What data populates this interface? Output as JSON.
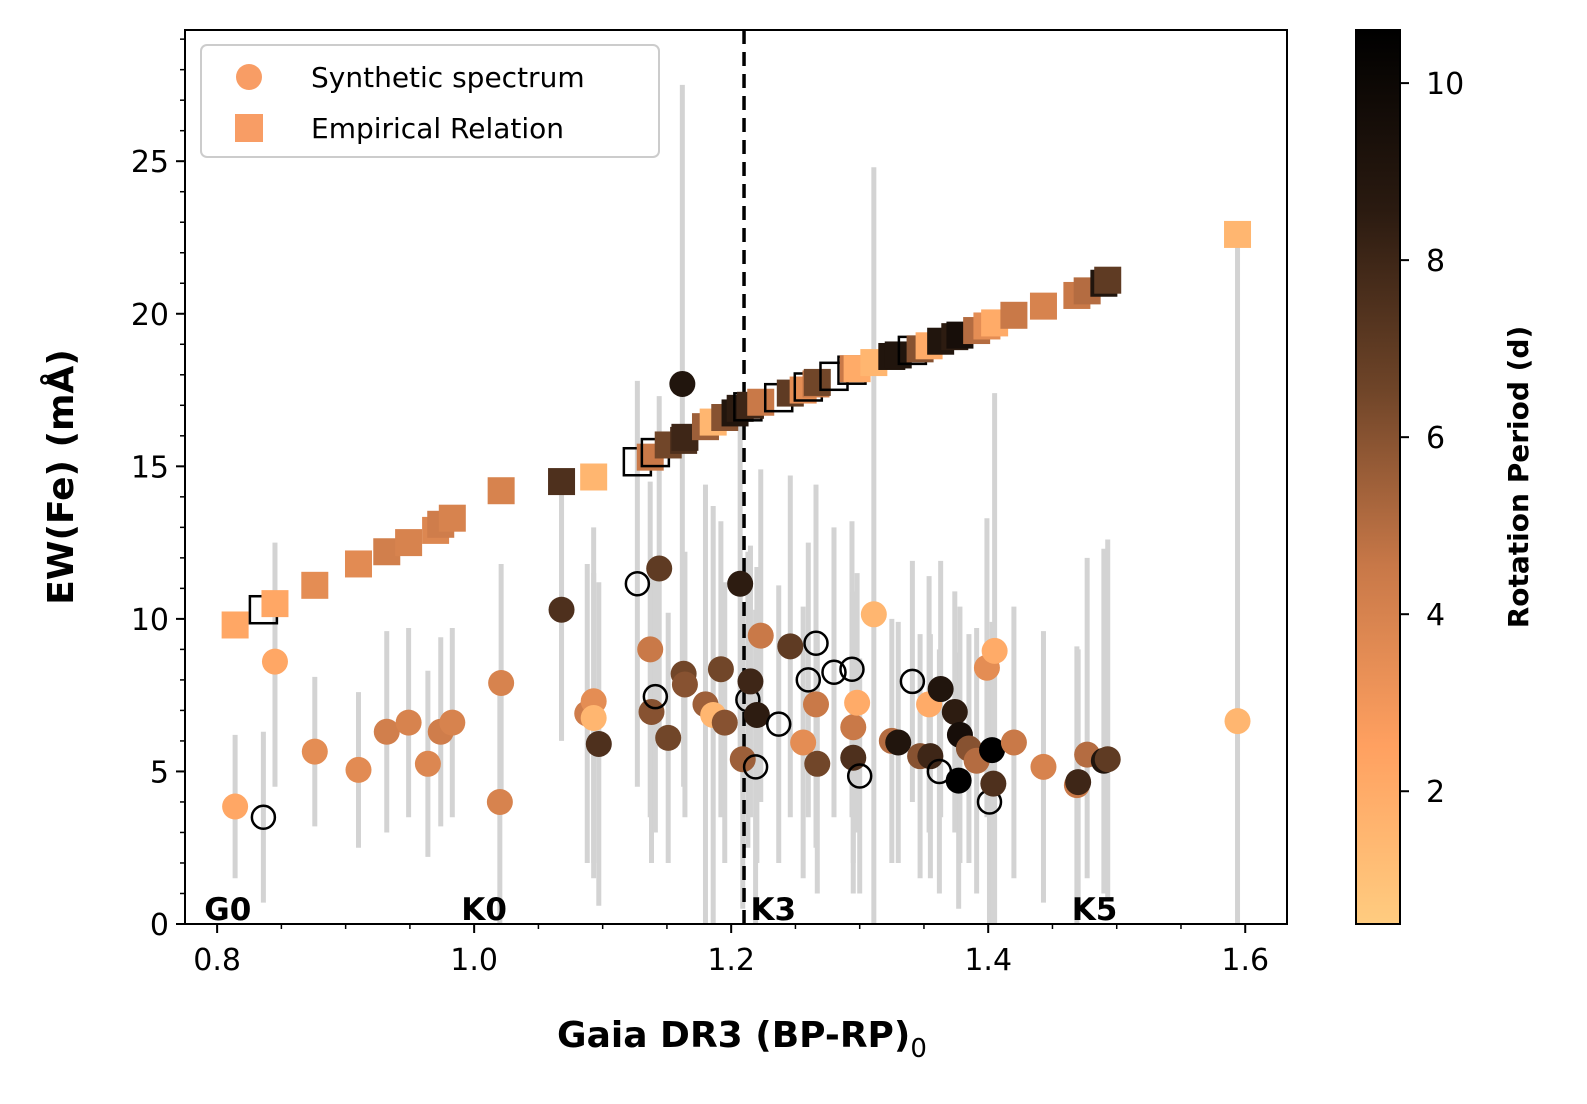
{
  "chart_data": {
    "type": "scatter",
    "xlabel": "Gaia DR3 (BP-RP)",
    "xlabel_sub": "0",
    "ylabel": "EW(Fe) (mÅ)",
    "xlim": [
      0.775,
      1.6325
    ],
    "ylim": [
      0,
      29.3
    ],
    "xticks": [
      "0.8",
      "1.0",
      "1.2",
      "1.4",
      "1.6"
    ],
    "yticks": [
      "0",
      "5",
      "10",
      "15",
      "20",
      "25"
    ],
    "colorbar": {
      "label": "Rotation Period (d)",
      "range": [
        0.5,
        10.6
      ],
      "ticks": [
        "2",
        "4",
        "6",
        "8",
        "10"
      ],
      "colors": [
        "#ffcc80",
        "#ffa060",
        "#c87848",
        "#6e4428",
        "#2a1a10",
        "#000000"
      ]
    },
    "legend": {
      "position": "upper-left",
      "entries": [
        {
          "label": "Synthetic spectrum",
          "marker": "circle",
          "color": "#f89d65"
        },
        {
          "label": "Empirical Relation",
          "marker": "square",
          "color": "#f89d65"
        }
      ]
    },
    "reference_line": {
      "x": 1.21,
      "style": "dashed",
      "color": "#000000"
    },
    "spectral_types": [
      {
        "label": "G0",
        "x": 0.79
      },
      {
        "label": "K0",
        "x": 0.99
      },
      {
        "label": "K3",
        "x": 1.215
      },
      {
        "label": "K5",
        "x": 1.465
      }
    ],
    "series": [
      {
        "name": "Synthetic spectrum",
        "marker": "circle",
        "points": [
          {
            "x": 0.814,
            "y": 3.85,
            "p": 2.2,
            "lo": 1.5,
            "hi": 6.2
          },
          {
            "x": 0.836,
            "y": 3.5,
            "p": null,
            "lo": 0.7,
            "hi": 6.3
          },
          {
            "x": 0.845,
            "y": 8.6,
            "p": 2.2,
            "lo": 4.5,
            "hi": 12.5
          },
          {
            "x": 0.876,
            "y": 5.65,
            "p": 3.5,
            "lo": 3.2,
            "hi": 8.1
          },
          {
            "x": 0.91,
            "y": 5.05,
            "p": 3.6,
            "lo": 2.5,
            "hi": 7.6
          },
          {
            "x": 0.932,
            "y": 6.3,
            "p": 4.2,
            "lo": 3.0,
            "hi": 9.6
          },
          {
            "x": 0.949,
            "y": 6.6,
            "p": 4.0,
            "lo": 3.5,
            "hi": 9.7
          },
          {
            "x": 0.964,
            "y": 5.25,
            "p": 3.8,
            "lo": 2.2,
            "hi": 8.3
          },
          {
            "x": 0.974,
            "y": 6.3,
            "p": 4.3,
            "lo": 3.2,
            "hi": 9.4
          },
          {
            "x": 0.983,
            "y": 6.6,
            "p": 4.0,
            "lo": 3.5,
            "hi": 9.7
          },
          {
            "x": 1.02,
            "y": 4.0,
            "p": 4.0,
            "lo": 0.0,
            "hi": 8.0
          },
          {
            "x": 1.021,
            "y": 7.9,
            "p": 4.0,
            "lo": 4.0,
            "hi": 11.8
          },
          {
            "x": 1.068,
            "y": 10.3,
            "p": 7.5,
            "lo": 6.0,
            "hi": 14.6
          },
          {
            "x": 1.088,
            "y": 6.9,
            "p": 4.3,
            "lo": 2.0,
            "hi": 11.8
          },
          {
            "x": 1.093,
            "y": 7.3,
            "p": 3.5,
            "lo": 1.5,
            "hi": 13.0
          },
          {
            "x": 1.093,
            "y": 6.75,
            "p": 1.5,
            "lo": 2.0,
            "hi": 11.5
          },
          {
            "x": 1.097,
            "y": 5.9,
            "p": 7.5,
            "lo": 0.6,
            "hi": 11.2
          },
          {
            "x": 1.127,
            "y": 11.15,
            "p": null,
            "lo": 4.5,
            "hi": 17.8
          },
          {
            "x": 1.137,
            "y": 9.0,
            "p": 4.5,
            "lo": 3.5,
            "hi": 14.5
          },
          {
            "x": 1.138,
            "y": 6.95,
            "p": 6.0,
            "lo": 2.0,
            "hi": 11.9
          },
          {
            "x": 1.141,
            "y": 7.45,
            "p": null,
            "lo": 3.0,
            "hi": 11.9
          },
          {
            "x": 1.144,
            "y": 11.65,
            "p": 7.0,
            "lo": 6.0,
            "hi": 17.3
          },
          {
            "x": 1.151,
            "y": 6.1,
            "p": 6.5,
            "lo": 2.0,
            "hi": 10.2
          },
          {
            "x": 1.162,
            "y": 17.7,
            "p": 9.0,
            "lo": 7.9,
            "hi": 27.5
          },
          {
            "x": 1.163,
            "y": 8.2,
            "p": 6.5,
            "lo": 4.5,
            "hi": 11.9
          },
          {
            "x": 1.164,
            "y": 7.85,
            "p": 6.0,
            "lo": 3.5,
            "hi": 12.2
          },
          {
            "x": 1.18,
            "y": 7.2,
            "p": 5.5,
            "lo": 0.0,
            "hi": 14.4
          },
          {
            "x": 1.186,
            "y": 6.85,
            "p": 1.5,
            "lo": 0.0,
            "hi": 13.7
          },
          {
            "x": 1.192,
            "y": 8.35,
            "p": 6.5,
            "lo": 3.5,
            "hi": 13.2
          },
          {
            "x": 1.195,
            "y": 6.6,
            "p": 6.0,
            "lo": 2.0,
            "hi": 11.2
          },
          {
            "x": 1.207,
            "y": 11.15,
            "p": 8.5,
            "lo": 5.0,
            "hi": 17.3
          },
          {
            "x": 1.213,
            "y": 7.35,
            "p": null,
            "lo": 2.5,
            "hi": 12.2
          },
          {
            "x": 1.209,
            "y": 5.4,
            "p": 5.5,
            "lo": 0.5,
            "hi": 10.3
          },
          {
            "x": 1.215,
            "y": 7.95,
            "p": 8.0,
            "lo": 3.5,
            "hi": 12.4
          },
          {
            "x": 1.219,
            "y": 5.15,
            "p": null,
            "lo": 0.0,
            "hi": 10.3
          },
          {
            "x": 1.22,
            "y": 6.85,
            "p": 8.5,
            "lo": 2.0,
            "hi": 11.7
          },
          {
            "x": 1.223,
            "y": 9.45,
            "p": 4.5,
            "lo": 4.0,
            "hi": 14.9
          },
          {
            "x": 1.237,
            "y": 6.55,
            "p": null,
            "lo": 2.0,
            "hi": 11.1
          },
          {
            "x": 1.246,
            "y": 9.1,
            "p": 7.0,
            "lo": 3.5,
            "hi": 14.7
          },
          {
            "x": 1.256,
            "y": 5.95,
            "p": 3.5,
            "lo": 1.5,
            "hi": 10.4
          },
          {
            "x": 1.26,
            "y": 8.0,
            "p": null,
            "lo": 3.5,
            "hi": 12.5
          },
          {
            "x": 1.266,
            "y": 7.2,
            "p": 4.5,
            "lo": 2.5,
            "hi": 11.9
          },
          {
            "x": 1.266,
            "y": 9.2,
            "p": null,
            "lo": 4.0,
            "hi": 14.4
          },
          {
            "x": 1.267,
            "y": 5.25,
            "p": 6.5,
            "lo": 1.0,
            "hi": 9.5
          },
          {
            "x": 1.28,
            "y": 8.25,
            "p": null,
            "lo": 3.5,
            "hi": 13.0
          },
          {
            "x": 1.294,
            "y": 8.35,
            "p": null,
            "lo": 3.5,
            "hi": 13.2
          },
          {
            "x": 1.295,
            "y": 6.45,
            "p": 4.5,
            "lo": 2.0,
            "hi": 10.9
          },
          {
            "x": 1.295,
            "y": 5.45,
            "p": 7.5,
            "lo": 1.0,
            "hi": 9.9
          },
          {
            "x": 1.298,
            "y": 7.25,
            "p": 2.0,
            "lo": 3.0,
            "hi": 11.5
          },
          {
            "x": 1.3,
            "y": 4.85,
            "p": null,
            "lo": 1.0,
            "hi": 8.7
          },
          {
            "x": 1.311,
            "y": 10.15,
            "p": 1.5,
            "lo": 0.0,
            "hi": 24.8
          },
          {
            "x": 1.325,
            "y": 6.0,
            "p": 5.0,
            "lo": 2.0,
            "hi": 10.0
          },
          {
            "x": 1.33,
            "y": 5.95,
            "p": 9.0,
            "lo": 2.0,
            "hi": 9.9
          },
          {
            "x": 1.341,
            "y": 7.95,
            "p": null,
            "lo": 4.0,
            "hi": 11.9
          },
          {
            "x": 1.347,
            "y": 5.5,
            "p": 6.0,
            "lo": 1.5,
            "hi": 9.5
          },
          {
            "x": 1.354,
            "y": 7.2,
            "p": 2.0,
            "lo": 3.0,
            "hi": 11.4
          },
          {
            "x": 1.355,
            "y": 5.5,
            "p": 8.0,
            "lo": 1.5,
            "hi": 9.5
          },
          {
            "x": 1.362,
            "y": 5.0,
            "p": null,
            "lo": 1.0,
            "hi": 9.0
          },
          {
            "x": 1.363,
            "y": 7.7,
            "p": 9.0,
            "lo": 3.5,
            "hi": 11.9
          },
          {
            "x": 1.374,
            "y": 6.95,
            "p": 8.5,
            "lo": 3.0,
            "hi": 10.9
          },
          {
            "x": 1.377,
            "y": 4.7,
            "p": 10.6,
            "lo": 0.5,
            "hi": 8.9
          },
          {
            "x": 1.378,
            "y": 6.2,
            "p": 9.5,
            "lo": 2.0,
            "hi": 10.4
          },
          {
            "x": 1.385,
            "y": 5.75,
            "p": 6.0,
            "lo": 2.0,
            "hi": 9.5
          },
          {
            "x": 1.391,
            "y": 5.35,
            "p": 5.0,
            "lo": 1.0,
            "hi": 9.7
          },
          {
            "x": 1.399,
            "y": 8.4,
            "p": 3.5,
            "lo": 3.5,
            "hi": 13.3
          },
          {
            "x": 1.401,
            "y": 4.0,
            "p": null,
            "lo": 0.0,
            "hi": 8.0
          },
          {
            "x": 1.403,
            "y": 5.7,
            "p": 10.6,
            "lo": 1.5,
            "hi": 9.9
          },
          {
            "x": 1.404,
            "y": 4.6,
            "p": 7.5,
            "lo": 0.0,
            "hi": 9.2
          },
          {
            "x": 1.405,
            "y": 8.95,
            "p": 2.0,
            "lo": 0.0,
            "hi": 17.4
          },
          {
            "x": 1.42,
            "y": 5.95,
            "p": 4.5,
            "lo": 1.5,
            "hi": 10.4
          },
          {
            "x": 1.443,
            "y": 5.15,
            "p": 4.0,
            "lo": 0.7,
            "hi": 9.6
          },
          {
            "x": 1.469,
            "y": 4.55,
            "p": 4.5,
            "lo": 0.0,
            "hi": 9.1
          },
          {
            "x": 1.47,
            "y": 4.65,
            "p": 8.0,
            "lo": 0.3,
            "hi": 9.0
          },
          {
            "x": 1.477,
            "y": 5.55,
            "p": 5.0,
            "lo": 1.5,
            "hi": 12.0
          },
          {
            "x": 1.49,
            "y": 5.35,
            "p": 9.0,
            "lo": 1.0,
            "hi": 12.3
          },
          {
            "x": 1.493,
            "y": 5.4,
            "p": 7.0,
            "lo": 0.8,
            "hi": 12.6
          },
          {
            "x": 1.594,
            "y": 6.65,
            "p": 1.5,
            "lo": 0.0,
            "hi": 22.6
          }
        ]
      },
      {
        "name": "Empirical Relation",
        "marker": "square",
        "points": [
          {
            "x": 0.814,
            "y": 9.8,
            "p": 2.2
          },
          {
            "x": 0.836,
            "y": 10.3,
            "p": null
          },
          {
            "x": 0.845,
            "y": 10.5,
            "p": 2.2
          },
          {
            "x": 0.876,
            "y": 11.1,
            "p": 3.5
          },
          {
            "x": 0.91,
            "y": 11.8,
            "p": 3.6
          },
          {
            "x": 0.932,
            "y": 12.2,
            "p": 4.2
          },
          {
            "x": 0.949,
            "y": 12.5,
            "p": 4.0
          },
          {
            "x": 0.97,
            "y": 12.9,
            "p": 3.8
          },
          {
            "x": 0.974,
            "y": 13.1,
            "p": 4.3
          },
          {
            "x": 0.983,
            "y": 13.3,
            "p": 4.0
          },
          {
            "x": 1.021,
            "y": 14.2,
            "p": 4.0
          },
          {
            "x": 1.068,
            "y": 14.5,
            "p": 7.5
          },
          {
            "x": 1.093,
            "y": 14.65,
            "p": 1.5
          },
          {
            "x": 1.127,
            "y": 15.15,
            "p": null
          },
          {
            "x": 1.137,
            "y": 15.3,
            "p": 4.5
          },
          {
            "x": 1.141,
            "y": 15.45,
            "p": null
          },
          {
            "x": 1.151,
            "y": 15.7,
            "p": 6.5
          },
          {
            "x": 1.163,
            "y": 15.85,
            "p": 7.5
          },
          {
            "x": 1.164,
            "y": 15.95,
            "p": 8.0
          },
          {
            "x": 1.18,
            "y": 16.3,
            "p": 5.5
          },
          {
            "x": 1.186,
            "y": 16.45,
            "p": 1.5
          },
          {
            "x": 1.195,
            "y": 16.6,
            "p": 6.0
          },
          {
            "x": 1.203,
            "y": 16.75,
            "p": 9.0
          },
          {
            "x": 1.207,
            "y": 16.9,
            "p": 8.5
          },
          {
            "x": 1.213,
            "y": 16.95,
            "p": null
          },
          {
            "x": 1.215,
            "y": 17.0,
            "p": 8.0
          },
          {
            "x": 1.223,
            "y": 17.1,
            "p": 4.5
          },
          {
            "x": 1.237,
            "y": 17.25,
            "p": null
          },
          {
            "x": 1.246,
            "y": 17.4,
            "p": 7.0
          },
          {
            "x": 1.256,
            "y": 17.5,
            "p": 3.5
          },
          {
            "x": 1.26,
            "y": 17.6,
            "p": null
          },
          {
            "x": 1.266,
            "y": 17.7,
            "p": 4.5
          },
          {
            "x": 1.267,
            "y": 17.75,
            "p": 6.5
          },
          {
            "x": 1.28,
            "y": 17.95,
            "p": null
          },
          {
            "x": 1.294,
            "y": 18.15,
            "p": null
          },
          {
            "x": 1.295,
            "y": 18.2,
            "p": 4.5
          },
          {
            "x": 1.298,
            "y": 18.2,
            "p": 2.0
          },
          {
            "x": 1.311,
            "y": 18.4,
            "p": 1.5
          },
          {
            "x": 1.325,
            "y": 18.6,
            "p": 9.0
          },
          {
            "x": 1.33,
            "y": 18.65,
            "p": 9.0
          },
          {
            "x": 1.341,
            "y": 18.8,
            "p": null
          },
          {
            "x": 1.347,
            "y": 18.85,
            "p": 6.0
          },
          {
            "x": 1.354,
            "y": 18.95,
            "p": 2.0
          },
          {
            "x": 1.363,
            "y": 19.1,
            "p": 9.0
          },
          {
            "x": 1.374,
            "y": 19.25,
            "p": 8.5
          },
          {
            "x": 1.378,
            "y": 19.3,
            "p": 9.5
          },
          {
            "x": 1.391,
            "y": 19.45,
            "p": 5.0
          },
          {
            "x": 1.399,
            "y": 19.6,
            "p": 3.5
          },
          {
            "x": 1.405,
            "y": 19.7,
            "p": 2.0
          },
          {
            "x": 1.42,
            "y": 19.95,
            "p": 4.5
          },
          {
            "x": 1.443,
            "y": 20.25,
            "p": 4.0
          },
          {
            "x": 1.469,
            "y": 20.6,
            "p": 4.5
          },
          {
            "x": 1.477,
            "y": 20.75,
            "p": 5.0
          },
          {
            "x": 1.49,
            "y": 21.0,
            "p": 9.0
          },
          {
            "x": 1.493,
            "y": 21.1,
            "p": 7.0
          },
          {
            "x": 1.594,
            "y": 22.6,
            "p": 1.5
          }
        ]
      }
    ]
  }
}
